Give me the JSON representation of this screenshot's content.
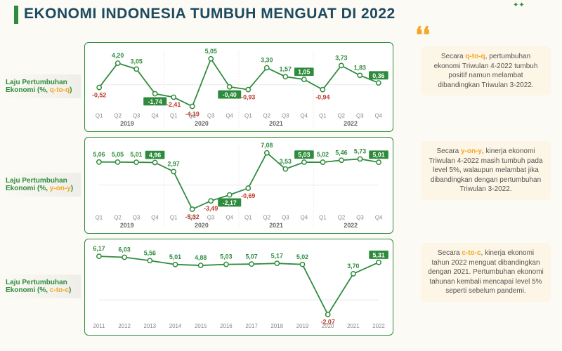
{
  "title": "EKONOMI INDONESIA TUMBUH MENGUAT DI 2022",
  "line_color": "#2e8b3c",
  "marker_color": "#2e8b3c",
  "marker_fill": "#ffffff",
  "badge_color": "#2e8b3c",
  "negative_color": "#c0392b",
  "grid_color": "#e8e8e8",
  "charts": [
    {
      "label_line1": "Laju Pertumbuhan",
      "label_line2_pre": "Ekonomi (%, ",
      "metric": "q-to-q",
      "label_line2_post": ")",
      "ticks": [
        "Q1",
        "Q2",
        "Q3",
        "Q4",
        "Q1",
        "Q2",
        "Q3",
        "Q4",
        "Q1",
        "Q2",
        "Q3",
        "Q4",
        "Q1",
        "Q2",
        "Q3",
        "Q4"
      ],
      "years": [
        "2019",
        "2020",
        "2021",
        "2022"
      ],
      "year_span": 4,
      "values": [
        -0.52,
        4.2,
        3.05,
        -1.74,
        -2.41,
        -4.19,
        5.05,
        -0.4,
        -0.93,
        3.3,
        1.57,
        1.05,
        -0.94,
        3.73,
        1.83,
        0.36
      ],
      "badges": [
        3,
        7,
        11,
        15
      ],
      "ylim": [
        -5,
        6
      ],
      "desc_pre": "Secara ",
      "desc_hl": "q-to-q",
      "desc_post": ", pertumbuhan ekonomi Triwulan 4-2022 tumbuh positif namun melambat dibandingkan Triwulan 3-2022."
    },
    {
      "label_line1": "Laju Pertumbuhan",
      "label_line2_pre": "Ekonomi (%, ",
      "metric": "y-on-y",
      "label_line2_post": ")",
      "ticks": [
        "Q1",
        "Q2",
        "Q3",
        "Q4",
        "Q1",
        "Q2",
        "Q3",
        "Q4",
        "Q1",
        "Q2",
        "Q3",
        "Q4",
        "Q1",
        "Q2",
        "Q3",
        "Q4"
      ],
      "years": [
        "2019",
        "2020",
        "2021",
        "2022"
      ],
      "year_span": 4,
      "values": [
        5.06,
        5.05,
        5.01,
        4.96,
        2.97,
        -5.32,
        -3.49,
        -2.17,
        -0.69,
        7.08,
        3.53,
        5.03,
        5.02,
        5.46,
        5.73,
        5.01
      ],
      "badges": [
        3,
        7,
        11,
        15
      ],
      "ylim": [
        -6,
        8
      ],
      "desc_pre": "Secara ",
      "desc_hl": "y-on-y",
      "desc_post": ", kinerja ekonomi Triwulan 4-2022 masih tumbuh pada level 5%, walaupun melambat jika dibandingkan dengan pertumbuhan Triwulan 3-2022."
    },
    {
      "label_line1": "Laju Pertumbuhan",
      "label_line2_pre": "Ekonomi (%, ",
      "metric": "c-to-c",
      "label_line2_post": ")",
      "ticks": [
        "2011",
        "2012",
        "2013",
        "2014",
        "2015",
        "2016",
        "2017",
        "2018",
        "2019",
        "2020",
        "2021",
        "2022"
      ],
      "years": [],
      "year_span": 0,
      "values": [
        6.17,
        6.03,
        5.56,
        5.01,
        4.88,
        5.03,
        5.07,
        5.17,
        5.02,
        -2.07,
        3.7,
        5.31
      ],
      "badges": [
        11
      ],
      "ylim": [
        -3,
        7
      ],
      "desc_pre": "Secara ",
      "desc_hl": "c-to-c",
      "desc_post": ", kinerja ekonomi tahun 2022 menguat dibandingkan dengan 2021. Pertumbuhan ekonomi tahunan kembali mencapai level 5% seperti sebelum pandemi."
    }
  ]
}
